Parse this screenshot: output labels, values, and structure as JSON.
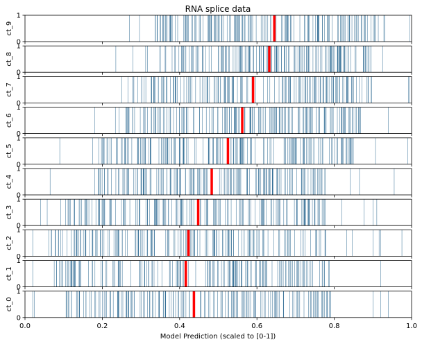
{
  "chart_data": {
    "type": "rug",
    "title": "RNA splice data",
    "xlabel": "Model Prediction (scaled to [0-1])",
    "xlim": [
      0,
      1
    ],
    "ylim": [
      0,
      1
    ],
    "x_ticks": [
      "0.0",
      "0.2",
      "0.4",
      "0.6",
      "0.8",
      "1.0"
    ],
    "y_ticks": [
      "0",
      "1"
    ],
    "line_color": "#1f5f8b",
    "marker_color": "#ff0000",
    "series": [
      {
        "name": "ct_9",
        "marker": 0.645,
        "min": 0.27,
        "max": 0.995,
        "dense_from": 0.33,
        "dense_to": 0.93,
        "seed": 9
      },
      {
        "name": "ct_8",
        "marker": 0.632,
        "min": 0.235,
        "max": 0.925,
        "dense_from": 0.36,
        "dense_to": 0.9,
        "seed": 8
      },
      {
        "name": "ct_7",
        "marker": 0.59,
        "min": 0.25,
        "max": 0.995,
        "dense_from": 0.28,
        "dense_to": 0.9,
        "seed": 7
      },
      {
        "name": "ct_6",
        "marker": 0.562,
        "min": 0.18,
        "max": 0.94,
        "dense_from": 0.26,
        "dense_to": 0.87,
        "seed": 6
      },
      {
        "name": "ct_5",
        "marker": 0.525,
        "min": 0.09,
        "max": 0.99,
        "dense_from": 0.19,
        "dense_to": 0.85,
        "seed": 5
      },
      {
        "name": "ct_4",
        "marker": 0.483,
        "min": 0.065,
        "max": 0.955,
        "dense_from": 0.18,
        "dense_to": 0.78,
        "seed": 4
      },
      {
        "name": "ct_3",
        "marker": 0.448,
        "min": 0.04,
        "max": 0.91,
        "dense_from": 0.09,
        "dense_to": 0.78,
        "seed": 3
      },
      {
        "name": "ct_2",
        "marker": 0.423,
        "min": 0.02,
        "max": 0.975,
        "dense_from": 0.06,
        "dense_to": 0.78,
        "seed": 2
      },
      {
        "name": "ct_1",
        "marker": 0.416,
        "min": 0.02,
        "max": 0.92,
        "dense_from": 0.07,
        "dense_to": 0.79,
        "seed": 1
      },
      {
        "name": "ct_0",
        "marker": 0.437,
        "min": 0.02,
        "max": 0.94,
        "dense_from": 0.1,
        "dense_to": 0.79,
        "seed": 10
      }
    ]
  }
}
